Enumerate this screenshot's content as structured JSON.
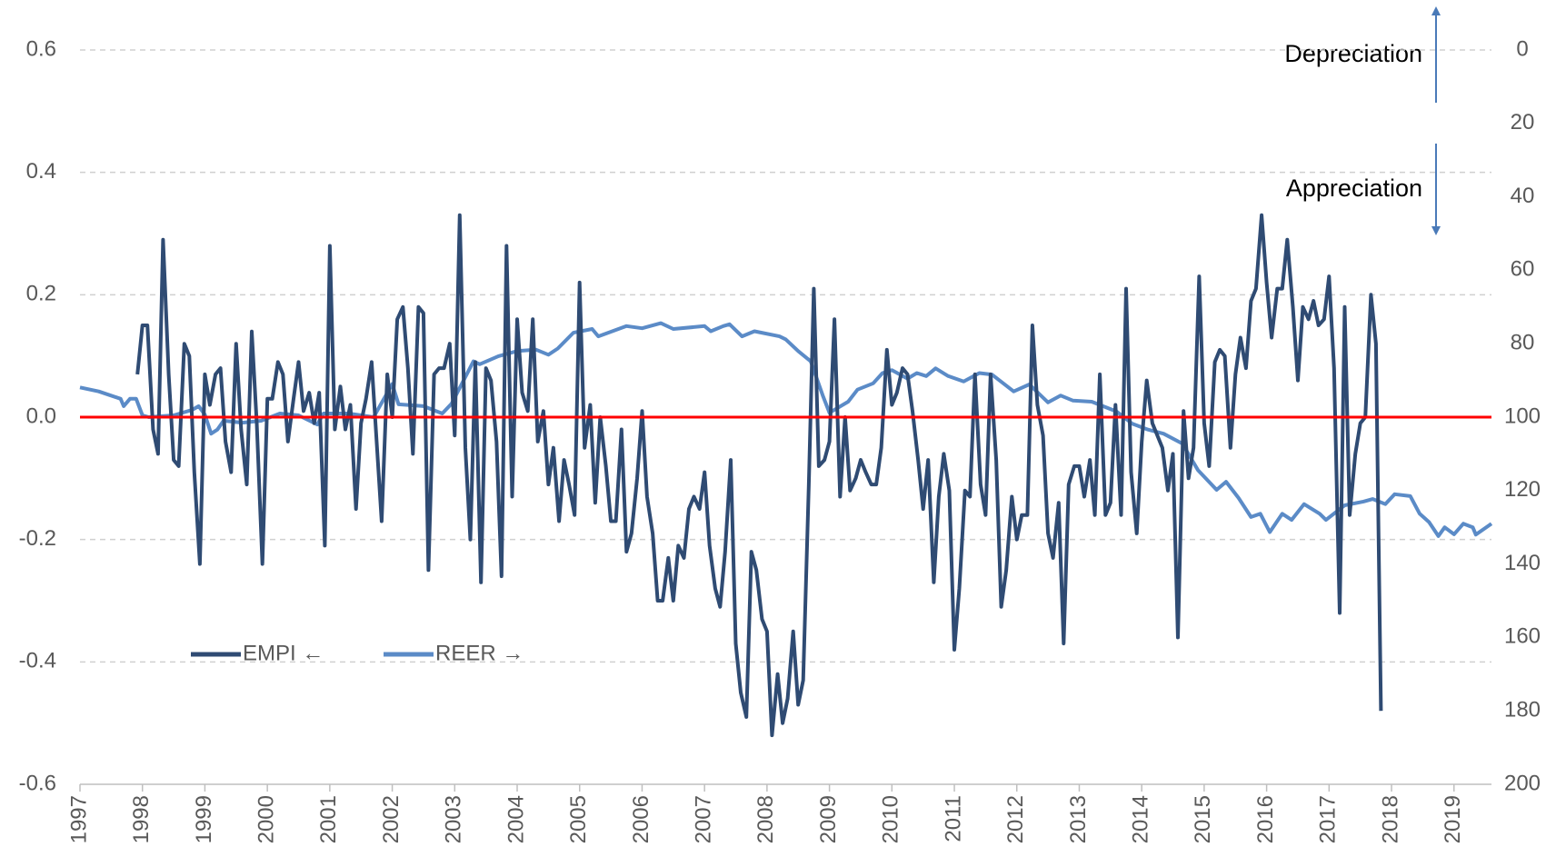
{
  "chart_data": {
    "type": "line",
    "xlim": [
      1997,
      2019.6
    ],
    "xticks": [
      1997,
      1998,
      1999,
      2000,
      2001,
      2002,
      2003,
      2004,
      2005,
      2006,
      2007,
      2008,
      2009,
      2010,
      2011,
      2012,
      2013,
      2014,
      2015,
      2016,
      2017,
      2018,
      2019
    ],
    "ylim": [
      -0.6,
      0.6
    ],
    "yticks": [
      -0.6,
      -0.4,
      -0.2,
      {
        "value": 0,
        "label": "0.0"
      },
      0.2,
      0.4,
      0.6
    ],
    "y2lim": [
      200,
      0
    ],
    "y2ticks": [
      0,
      20,
      40,
      60,
      80,
      100,
      120,
      140,
      160,
      180,
      200
    ],
    "grid": true,
    "reference_line": {
      "value": 0,
      "color": "#ff0000"
    },
    "legend": "center-left",
    "annotations": [
      {
        "text": "Depreciation"
      },
      {
        "text": "Appreciation"
      }
    ],
    "series": [
      {
        "name": "EMPI ←",
        "color": "#2f4b73",
        "x": [
          1997.92,
          1998.0,
          1998.08,
          1998.17,
          1998.25,
          1998.33,
          1998.42,
          1998.5,
          1998.58,
          1998.67,
          1998.75,
          1998.83,
          1998.92,
          1999.0,
          1999.08,
          1999.17,
          1999.25,
          1999.33,
          1999.42,
          1999.5,
          1999.58,
          1999.67,
          1999.75,
          1999.83,
          1999.92,
          2000.0,
          2000.08,
          2000.17,
          2000.25,
          2000.33,
          2000.42,
          2000.5,
          2000.58,
          2000.67,
          2000.75,
          2000.83,
          2000.92,
          2001.0,
          2001.08,
          2001.17,
          2001.25,
          2001.33,
          2001.42,
          2001.5,
          2001.58,
          2001.67,
          2001.75,
          2001.83,
          2001.92,
          2002.0,
          2002.08,
          2002.17,
          2002.25,
          2002.33,
          2002.42,
          2002.5,
          2002.58,
          2002.67,
          2002.75,
          2002.83,
          2002.92,
          2003.0,
          2003.08,
          2003.17,
          2003.25,
          2003.33,
          2003.42,
          2003.5,
          2003.58,
          2003.67,
          2003.75,
          2003.83,
          2003.92,
          2004.0,
          2004.08,
          2004.17,
          2004.25,
          2004.33,
          2004.42,
          2004.5,
          2004.58,
          2004.67,
          2004.75,
          2004.83,
          2004.92,
          2005.0,
          2005.08,
          2005.17,
          2005.25,
          2005.33,
          2005.42,
          2005.5,
          2005.58,
          2005.67,
          2005.75,
          2005.83,
          2005.92,
          2006.0,
          2006.08,
          2006.17,
          2006.25,
          2006.33,
          2006.42,
          2006.5,
          2006.58,
          2006.67,
          2006.75,
          2006.83,
          2006.92,
          2007.0,
          2007.08,
          2007.17,
          2007.25,
          2007.33,
          2007.42,
          2007.5,
          2007.58,
          2007.67,
          2007.75,
          2007.83,
          2007.92,
          2008.0,
          2008.08,
          2008.17,
          2008.25,
          2008.33,
          2008.42,
          2008.5,
          2008.58,
          2008.67,
          2008.75,
          2008.83,
          2008.92,
          2009.0,
          2009.08,
          2009.17,
          2009.25,
          2009.33,
          2009.42,
          2009.5,
          2009.58,
          2009.67,
          2009.75,
          2009.83,
          2009.92,
          2010.0,
          2010.08,
          2010.17,
          2010.25,
          2010.33,
          2010.42,
          2010.5,
          2010.58,
          2010.67,
          2010.75,
          2010.83,
          2010.92,
          2011.0,
          2011.08,
          2011.17,
          2011.25,
          2011.33,
          2011.42,
          2011.5,
          2011.58,
          2011.67,
          2011.75,
          2011.83,
          2011.92,
          2012.0,
          2012.08,
          2012.17,
          2012.25,
          2012.33,
          2012.42,
          2012.5,
          2012.58,
          2012.67,
          2012.75,
          2012.83,
          2012.92,
          2013.0,
          2013.08,
          2013.17,
          2013.25,
          2013.33,
          2013.42,
          2013.5,
          2013.58,
          2013.67,
          2013.75,
          2013.83,
          2013.92,
          2014.0,
          2014.08,
          2014.17,
          2014.25,
          2014.33,
          2014.42,
          2014.5,
          2014.58,
          2014.67,
          2014.75,
          2014.83,
          2014.92,
          2015.0,
          2015.08,
          2015.17,
          2015.25,
          2015.33,
          2015.42,
          2015.5,
          2015.58,
          2015.67,
          2015.75,
          2015.83,
          2015.92,
          2016.0,
          2016.08,
          2016.17,
          2016.25,
          2016.33,
          2016.42,
          2016.5,
          2016.58,
          2016.67,
          2016.75,
          2016.83,
          2016.92,
          2017.0,
          2017.08,
          2017.17,
          2017.25,
          2017.33,
          2017.42,
          2017.5,
          2017.58,
          2017.67,
          2017.75,
          2017.83
        ],
        "values": [
          0.07,
          0.15,
          0.15,
          -0.02,
          -0.06,
          0.29,
          0.07,
          -0.07,
          -0.08,
          0.12,
          0.1,
          -0.09,
          -0.24,
          0.07,
          0.02,
          0.07,
          0.08,
          -0.04,
          -0.09,
          0.12,
          -0.02,
          -0.11,
          0.14,
          -0.01,
          -0.24,
          0.03,
          0.03,
          0.09,
          0.07,
          -0.04,
          0.03,
          0.09,
          0.01,
          0.04,
          -0.01,
          0.04,
          -0.21,
          0.28,
          -0.02,
          0.05,
          -0.02,
          0.02,
          -0.15,
          -0.01,
          0.03,
          0.09,
          -0.04,
          -0.17,
          0.07,
          0.0,
          0.16,
          0.18,
          0.08,
          -0.06,
          0.18,
          0.17,
          -0.25,
          0.07,
          0.08,
          0.08,
          0.12,
          -0.03,
          0.33,
          -0.05,
          -0.2,
          0.09,
          -0.27,
          0.08,
          0.06,
          -0.04,
          -0.26,
          0.28,
          -0.13,
          0.16,
          0.04,
          0.01,
          0.16,
          -0.04,
          0.01,
          -0.11,
          -0.05,
          -0.17,
          -0.07,
          -0.11,
          -0.16,
          0.22,
          -0.05,
          0.02,
          -0.14,
          0.0,
          -0.08,
          -0.17,
          -0.17,
          -0.02,
          -0.22,
          -0.19,
          -0.1,
          0.01,
          -0.13,
          -0.19,
          -0.3,
          -0.3,
          -0.23,
          -0.3,
          -0.21,
          -0.23,
          -0.15,
          -0.13,
          -0.15,
          -0.09,
          -0.21,
          -0.28,
          -0.31,
          -0.22,
          -0.07,
          -0.37,
          -0.45,
          -0.49,
          -0.22,
          -0.25,
          -0.33,
          -0.35,
          -0.52,
          -0.42,
          -0.5,
          -0.46,
          -0.35,
          -0.47,
          -0.43,
          -0.11,
          0.21,
          -0.08,
          -0.07,
          -0.04,
          0.16,
          -0.13,
          0.0,
          -0.12,
          -0.1,
          -0.07,
          -0.09,
          -0.11,
          -0.11,
          -0.05,
          0.11,
          0.02,
          0.04,
          0.08,
          0.07,
          0.01,
          -0.07,
          -0.15,
          -0.07,
          -0.27,
          -0.13,
          -0.06,
          -0.12,
          -0.38,
          -0.28,
          -0.12,
          -0.13,
          0.07,
          -0.11,
          -0.16,
          0.07,
          -0.07,
          -0.31,
          -0.25,
          -0.13,
          -0.2,
          -0.16,
          -0.16,
          0.15,
          0.02,
          -0.03,
          -0.19,
          -0.23,
          -0.14,
          -0.37,
          -0.11,
          -0.08,
          -0.08,
          -0.13,
          -0.07,
          -0.16,
          0.07,
          -0.16,
          -0.14,
          0.02,
          -0.16,
          0.21,
          -0.09,
          -0.19,
          -0.04,
          0.06,
          -0.01,
          -0.03,
          -0.05,
          -0.12,
          -0.06,
          -0.36,
          0.01,
          -0.1,
          -0.05,
          0.23,
          -0.01,
          -0.08,
          0.09,
          0.11,
          0.1,
          -0.05,
          0.07,
          0.13,
          0.08,
          0.19,
          0.21,
          0.33,
          0.22,
          0.13,
          0.21,
          0.21,
          0.29,
          0.18,
          0.06,
          0.18,
          0.16,
          0.19,
          0.15,
          0.16,
          0.23,
          0.08,
          -0.32,
          0.18,
          -0.16,
          -0.06,
          -0.01,
          0.0,
          0.2,
          0.12,
          -0.48
        ]
      },
      {
        "name": "REER →",
        "color": "#5b8bc7",
        "axis": "y2",
        "x": [
          1997.0,
          1997.3,
          1997.65,
          1997.7,
          1997.8,
          1997.9,
          1998.0,
          1998.1,
          1998.5,
          1998.8,
          1998.9,
          1999.0,
          1999.1,
          1999.2,
          1999.3,
          1999.6,
          1999.9,
          2000.2,
          2000.5,
          2000.8,
          2000.9,
          2001.3,
          2001.7,
          2002.0,
          2002.1,
          2002.5,
          2002.8,
          2002.95,
          2003.3,
          2003.4,
          2003.7,
          2004.0,
          2004.3,
          2004.5,
          2004.65,
          2004.9,
          2005.2,
          2005.3,
          2005.75,
          2006.0,
          2006.3,
          2006.5,
          2007.0,
          2007.1,
          2007.3,
          2007.4,
          2007.6,
          2007.8,
          2008.2,
          2008.3,
          2008.5,
          2008.7,
          2008.9,
          2009.0,
          2009.3,
          2009.45,
          2009.7,
          2009.85,
          2010.0,
          2010.25,
          2010.4,
          2010.55,
          2010.7,
          2010.9,
          2011.15,
          2011.4,
          2011.6,
          2011.95,
          2012.2,
          2012.5,
          2012.7,
          2012.9,
          2013.2,
          2013.6,
          2013.85,
          2014.1,
          2014.35,
          2014.65,
          2014.9,
          2015.2,
          2015.35,
          2015.55,
          2015.75,
          2015.9,
          2016.05,
          2016.25,
          2016.4,
          2016.6,
          2016.85,
          2016.95,
          2017.25,
          2017.55,
          2017.7,
          2017.9,
          2018.05,
          2018.3,
          2018.45,
          2018.6,
          2018.75,
          2018.85,
          2019.0,
          2019.15,
          2019.3,
          2019.35,
          2019.6
        ],
        "values": [
          91.9,
          93,
          95,
          97,
          95,
          95,
          99.5,
          100,
          99.5,
          98,
          97,
          99.3,
          104.5,
          103.4,
          101,
          101.5,
          101,
          99,
          99.5,
          102,
          99,
          99,
          100,
          91,
          96.5,
          97,
          99,
          96.3,
          84.8,
          85.6,
          83.4,
          82,
          81.6,
          83,
          81.3,
          77,
          76,
          78,
          75.2,
          75.8,
          74.4,
          76,
          75.2,
          76.6,
          75.2,
          74.7,
          78,
          76.6,
          78,
          78.8,
          82,
          84.8,
          94.4,
          98.8,
          95.8,
          92.5,
          90.8,
          88,
          87.2,
          89.5,
          88,
          88.8,
          86.7,
          88.8,
          90.3,
          88,
          88.4,
          93,
          91.1,
          96,
          94.1,
          95.5,
          95.8,
          98.5,
          101.8,
          103.4,
          104.5,
          107.2,
          114.4,
          119.8,
          117.6,
          122,
          127.2,
          126.3,
          131.3,
          126.3,
          128,
          123.7,
          126.3,
          128,
          124,
          123,
          122.3,
          123.7,
          121,
          121.5,
          126.3,
          128.6,
          132.4,
          130,
          131.9,
          129,
          130,
          132,
          129
        ]
      }
    ]
  }
}
